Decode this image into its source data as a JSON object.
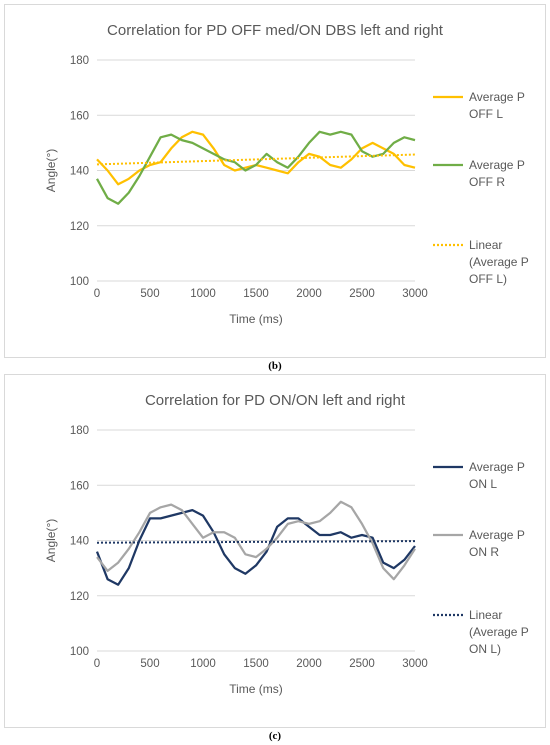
{
  "chart_data": [
    {
      "type": "line",
      "title": "Correlation for PD OFF med/ON DBS left and right",
      "xlabel": "Time (ms)",
      "ylabel": "Angle(°)",
      "xlim": [
        0,
        3000
      ],
      "ylim": [
        100,
        180
      ],
      "x_ticks": [
        0,
        500,
        1000,
        1500,
        2000,
        2500,
        3000
      ],
      "y_ticks": [
        100,
        120,
        140,
        160,
        180
      ],
      "grid": "horizontal",
      "legend": "right",
      "series": [
        {
          "name": "Average P OFF L",
          "color": "#FFC000",
          "style": "solid",
          "x": [
            0,
            100,
            200,
            300,
            400,
            500,
            600,
            700,
            800,
            900,
            1000,
            1100,
            1200,
            1300,
            1400,
            1500,
            1600,
            1700,
            1800,
            1900,
            2000,
            2100,
            2200,
            2300,
            2400,
            2500,
            2600,
            2700,
            2800,
            2900,
            3000
          ],
          "y": [
            144,
            140,
            135,
            137,
            140,
            142,
            143,
            148,
            152,
            154,
            153,
            148,
            142,
            140,
            141,
            142,
            141,
            140,
            139,
            143,
            146,
            145,
            142,
            141,
            144,
            148,
            150,
            148,
            146,
            142,
            141
          ]
        },
        {
          "name": "Average P OFF R",
          "color": "#70AD47",
          "style": "solid",
          "x": [
            0,
            100,
            200,
            300,
            400,
            500,
            600,
            700,
            800,
            900,
            1000,
            1100,
            1200,
            1300,
            1400,
            1500,
            1600,
            1700,
            1800,
            1900,
            2000,
            2100,
            2200,
            2300,
            2400,
            2500,
            2600,
            2700,
            2800,
            2900,
            3000
          ],
          "y": [
            137,
            130,
            128,
            132,
            138,
            145,
            152,
            153,
            151,
            150,
            148,
            146,
            144,
            143,
            140,
            142,
            146,
            143,
            141,
            145,
            150,
            154,
            153,
            154,
            153,
            147,
            145,
            146,
            150,
            152,
            151
          ]
        },
        {
          "name": "Linear (Average P OFF L)",
          "color": "#FFC000",
          "style": "dotted",
          "x": [
            0,
            3000
          ],
          "y": [
            142.2,
            145.8
          ]
        }
      ]
    },
    {
      "type": "line",
      "title": "Correlation for PD ON/ON left and right",
      "xlabel": "Time (ms)",
      "ylabel": "Angle(°)",
      "xlim": [
        0,
        3000
      ],
      "ylim": [
        100,
        180
      ],
      "x_ticks": [
        0,
        500,
        1000,
        1500,
        2000,
        2500,
        3000
      ],
      "y_ticks": [
        100,
        120,
        140,
        160,
        180
      ],
      "grid": "horizontal",
      "legend": "right",
      "series": [
        {
          "name": "Average P ON L",
          "color": "#1F3864",
          "style": "solid",
          "x": [
            0,
            100,
            200,
            300,
            400,
            500,
            600,
            700,
            800,
            900,
            1000,
            1100,
            1200,
            1300,
            1400,
            1500,
            1600,
            1700,
            1800,
            1900,
            2000,
            2100,
            2200,
            2300,
            2400,
            2500,
            2600,
            2700,
            2800,
            2900,
            3000
          ],
          "y": [
            136,
            126,
            124,
            130,
            140,
            148,
            148,
            149,
            150,
            151,
            149,
            143,
            135,
            130,
            128,
            131,
            136,
            145,
            148,
            148,
            145,
            142,
            142,
            143,
            141,
            142,
            141,
            132,
            130,
            133,
            138
          ]
        },
        {
          "name": "Average P ON R",
          "color": "#A6A6A6",
          "style": "solid",
          "x": [
            0,
            100,
            200,
            300,
            400,
            500,
            600,
            700,
            800,
            900,
            1000,
            1100,
            1200,
            1300,
            1400,
            1500,
            1600,
            1700,
            1800,
            1900,
            2000,
            2100,
            2200,
            2300,
            2400,
            2500,
            2600,
            2700,
            2800,
            2900,
            3000
          ],
          "y": [
            134,
            129,
            132,
            137,
            143,
            150,
            152,
            153,
            151,
            146,
            141,
            143,
            143,
            141,
            135,
            134,
            137,
            141,
            146,
            147,
            146,
            147,
            150,
            154,
            152,
            146,
            139,
            130,
            126,
            131,
            137
          ]
        },
        {
          "name": "Linear (Average P ON L)",
          "color": "#1F3864",
          "style": "dotted",
          "x": [
            0,
            3000
          ],
          "y": [
            139.2,
            139.8
          ]
        }
      ]
    }
  ],
  "captions": [
    "(b)",
    "(c)"
  ]
}
